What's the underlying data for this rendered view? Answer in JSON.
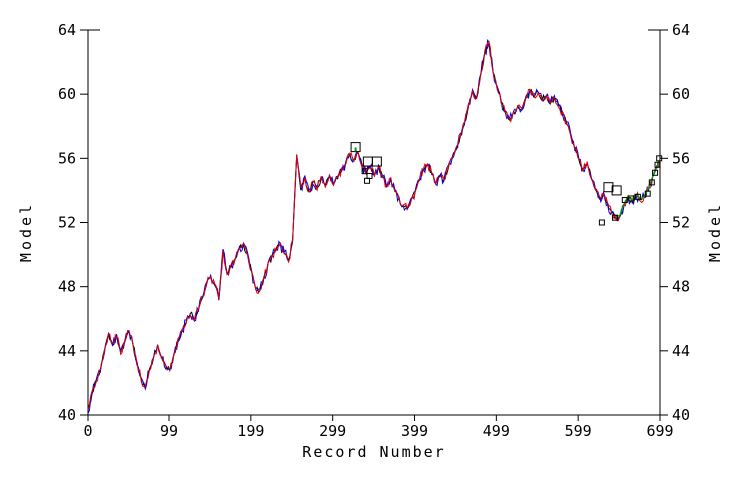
{
  "chart_data": {
    "type": "line",
    "title": "",
    "xlabel": "Record Number",
    "ylabel_left": "Model",
    "ylabel_right": "Model",
    "xlim": [
      0,
      699
    ],
    "ylim": [
      40,
      64
    ],
    "x_ticks": [
      0,
      99,
      199,
      299,
      399,
      499,
      599,
      699
    ],
    "y_ticks": [
      40,
      44,
      48,
      52,
      56,
      60,
      64
    ],
    "grid": false,
    "legend": "none",
    "axis_style": "left-right-bottom box, outward ticks, labels on both y axes",
    "colors": {
      "black": "#000000",
      "blue": "#0000e0",
      "red": "#dd0000",
      "green": "#00a000",
      "axis": "#000000",
      "background": "#ffffff"
    },
    "x": [
      0,
      5,
      10,
      15,
      20,
      25,
      30,
      35,
      40,
      45,
      50,
      55,
      60,
      65,
      70,
      75,
      80,
      85,
      90,
      95,
      100,
      105,
      110,
      115,
      120,
      125,
      130,
      135,
      140,
      145,
      150,
      155,
      160,
      165,
      170,
      175,
      180,
      185,
      190,
      195,
      200,
      205,
      210,
      215,
      220,
      225,
      230,
      235,
      240,
      245,
      250,
      255,
      260,
      265,
      270,
      275,
      280,
      285,
      290,
      295,
      300,
      305,
      310,
      315,
      320,
      325,
      330,
      335,
      340,
      345,
      350,
      355,
      360,
      365,
      370,
      375,
      380,
      385,
      390,
      395,
      400,
      405,
      410,
      415,
      420,
      425,
      430,
      435,
      440,
      445,
      450,
      455,
      460,
      465,
      470,
      475,
      480,
      485,
      490,
      495,
      500,
      505,
      510,
      515,
      520,
      525,
      530,
      535,
      540,
      545,
      550,
      555,
      560,
      565,
      570,
      575,
      580,
      585,
      590,
      595,
      600,
      605,
      610,
      615,
      620,
      625,
      630,
      635,
      640,
      645,
      650,
      655,
      660,
      665,
      670,
      675,
      680,
      685,
      690,
      695,
      699
    ],
    "series_base_values": [
      40.2,
      41.4,
      42.1,
      42.8,
      44.0,
      45.1,
      44.4,
      44.9,
      43.9,
      44.6,
      45.3,
      44.4,
      43.2,
      42.2,
      41.7,
      42.8,
      43.6,
      44.3,
      43.6,
      43.0,
      42.8,
      43.8,
      44.7,
      45.3,
      45.8,
      46.3,
      46.0,
      46.6,
      47.3,
      48.2,
      48.6,
      48.1,
      47.3,
      50.2,
      48.8,
      49.3,
      49.8,
      50.4,
      50.6,
      50.0,
      48.9,
      47.9,
      47.7,
      48.6,
      49.4,
      49.9,
      50.3,
      50.6,
      50.1,
      49.6,
      50.8,
      56.2,
      54.1,
      54.8,
      53.9,
      54.5,
      54.1,
      54.8,
      54.3,
      54.9,
      54.4,
      54.8,
      55.3,
      55.7,
      56.2,
      55.9,
      56.4,
      55.5,
      55.1,
      55.5,
      54.9,
      55.5,
      54.8,
      54.3,
      54.7,
      54.0,
      53.5,
      53.0,
      52.9,
      53.4,
      53.9,
      54.7,
      55.3,
      55.6,
      55.1,
      54.5,
      54.9,
      54.7,
      55.4,
      56.0,
      56.6,
      57.4,
      58.2,
      59.3,
      60.2,
      59.7,
      61.3,
      62.6,
      63.3,
      61.4,
      60.4,
      59.5,
      58.9,
      58.4,
      58.8,
      59.3,
      59.0,
      59.8,
      60.2,
      59.9,
      60.1,
      59.6,
      60.0,
      59.4,
      59.8,
      59.3,
      58.8,
      58.2,
      57.4,
      56.6,
      55.9,
      55.3,
      55.7,
      54.8,
      54.1,
      53.5,
      53.8,
      53.1,
      52.6,
      52.3,
      52.4,
      53.1,
      53.6,
      53.3,
      53.7,
      53.4,
      53.6,
      54.1,
      54.8,
      55.4,
      55.9
    ],
    "series": [
      {
        "name": "black-line",
        "color_key": "black"
      },
      {
        "name": "blue-line",
        "color_key": "blue"
      },
      {
        "name": "red-line",
        "color_key": "red"
      }
    ],
    "green_tail": {
      "name": "green-tail-line",
      "color_key": "green",
      "x_start": 645
    },
    "markers": {
      "shape": "open-square",
      "color": "#000000",
      "large_squares": [
        [
          327,
          56.7
        ],
        [
          342,
          55.8
        ],
        [
          353,
          55.8
        ],
        [
          636,
          54.2
        ],
        [
          646,
          54.0
        ]
      ],
      "small_squares": [
        [
          338,
          55.2
        ],
        [
          344,
          54.9
        ],
        [
          341,
          54.6
        ],
        [
          628,
          52.0
        ],
        [
          644,
          52.3
        ],
        [
          656,
          53.4
        ],
        [
          664,
          53.5
        ],
        [
          672,
          53.6
        ],
        [
          684,
          53.8
        ],
        [
          689,
          54.5
        ],
        [
          693,
          55.1
        ],
        [
          696,
          55.6
        ],
        [
          698,
          56.0
        ]
      ],
      "green_tick_inside_square": [
        327,
        56.55
      ]
    }
  }
}
